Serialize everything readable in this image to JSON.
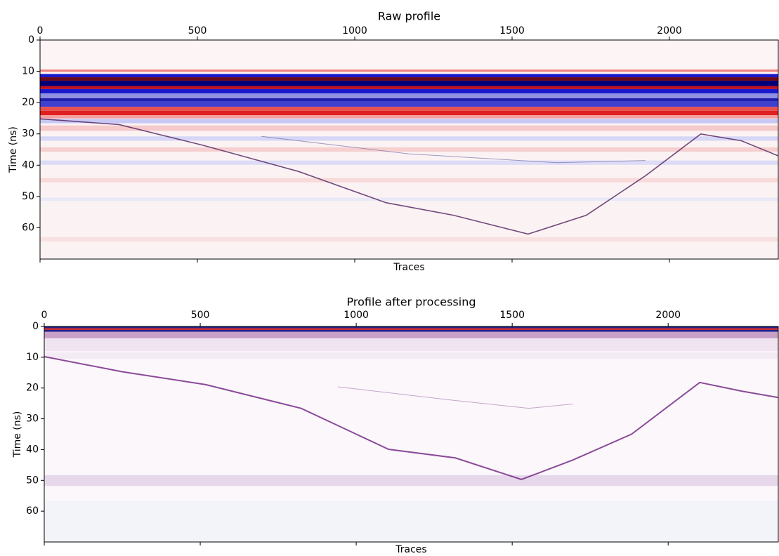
{
  "chart_data": [
    {
      "type": "image",
      "title": "Raw profile",
      "xlabel": "Traces",
      "ylabel": "Time (ns)",
      "xlim": [
        0,
        2346
      ],
      "xticks": [
        0,
        500,
        1000,
        1500,
        2000
      ],
      "ylim": [
        70,
        0
      ],
      "yticks": [
        0,
        10,
        20,
        30,
        40,
        50,
        60
      ],
      "colormap": "seismic"
    },
    {
      "type": "image",
      "title": "Profile after processing",
      "xlabel": "Traces",
      "ylabel": "Time (ns)",
      "xlim": [
        0,
        2353
      ],
      "xticks": [
        0,
        500,
        1000,
        1500,
        2000
      ],
      "ylim": [
        70,
        0
      ],
      "yticks": [
        0,
        10,
        20,
        30,
        40,
        50,
        60
      ],
      "colormap": "seismic"
    }
  ]
}
